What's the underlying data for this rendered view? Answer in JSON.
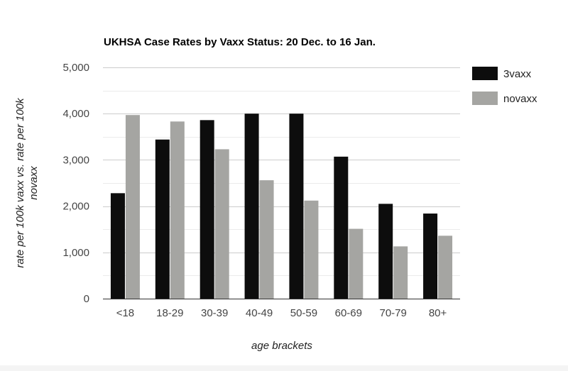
{
  "chart_data": {
    "type": "bar",
    "title": "UKHSA Case Rates by Vaxx Status: 20 Dec. to 16 Jan.",
    "xlabel": "age brackets",
    "ylabel_lines": [
      "rate per 100k vaxx vs. rate per 100k",
      "novaxx"
    ],
    "categories": [
      "<18",
      "18-29",
      "30-39",
      "40-49",
      "50-59",
      "60-69",
      "70-79",
      "80+"
    ],
    "series": [
      {
        "name": "3vaxx",
        "color": "#0d0d0d",
        "values": [
          2280,
          3440,
          3860,
          4000,
          4000,
          3070,
          2050,
          1840
        ]
      },
      {
        "name": "novaxx",
        "color": "#a5a5a2",
        "values": [
          3970,
          3830,
          3230,
          2560,
          2120,
          1510,
          1130,
          1360
        ]
      }
    ],
    "ylim": [
      0,
      5000
    ],
    "yticks": [
      0,
      1000,
      2000,
      3000,
      4000,
      5000
    ],
    "ytick_labels": [
      "0",
      "1,000",
      "2,000",
      "3,000",
      "4,000",
      "5,000"
    ],
    "grid": true,
    "legend_position": "top-right"
  }
}
